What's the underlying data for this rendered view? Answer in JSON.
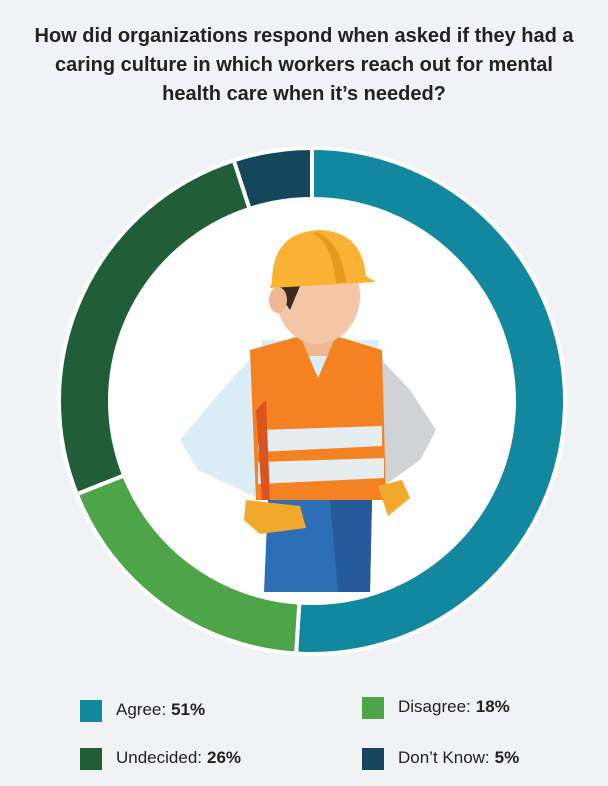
{
  "chart_data": {
    "type": "donut",
    "title": "How did organizations respond when asked if they had a caring culture in which workers reach out for mental health care when it’s needed?",
    "categories": [
      "Agree:",
      "Disagree:",
      "Undecided:",
      "Don’t Know:"
    ],
    "values": [
      51,
      18,
      26,
      5
    ],
    "value_labels": [
      "51%",
      "18%",
      "26%",
      "5%"
    ],
    "colors": [
      "#12889e",
      "#4ea548",
      "#1f5e36",
      "#14475c"
    ]
  }
}
